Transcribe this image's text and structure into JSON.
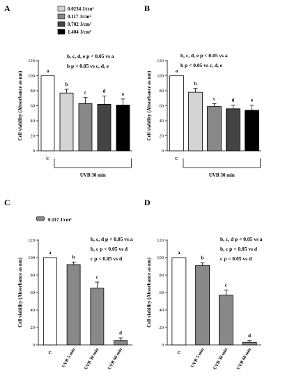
{
  "figure": {
    "legend_top": [
      "0.0234 J/cm²",
      "0.117 J/cm²",
      "0.702 J/cm²",
      "1.404 J/cm²"
    ],
    "legend_top_colors": [
      "#d4d4d4",
      "#888888",
      "#444444",
      "#000000"
    ],
    "legend_bottom": "0.117 J/cm²",
    "legend_bottom_color": "#888888"
  },
  "chart_data": [
    {
      "panel": "A",
      "type": "bar",
      "categories": [
        "C",
        "",
        "",
        "",
        ""
      ],
      "values": [
        100,
        77,
        63,
        62,
        61
      ],
      "errors": [
        0,
        5,
        8,
        11,
        8
      ],
      "colors": [
        "#ffffff",
        "#d4d4d4",
        "#888888",
        "#444444",
        "#000000"
      ],
      "bar_labels": [
        "a",
        "b",
        "c",
        "d",
        "e"
      ],
      "ylabel": "Cell viability (Absorbance as nm)",
      "ylim": [
        0,
        120
      ],
      "yticks": [
        0,
        20,
        40,
        60,
        80,
        100,
        120
      ],
      "group_label": "UVB 30 min",
      "annotations": [
        "b, c, d, e p < 0.05 vs a",
        "b p < 0.05 vs c, d, e"
      ]
    },
    {
      "panel": "B",
      "type": "bar",
      "categories": [
        "C",
        "",
        "",
        "",
        ""
      ],
      "values": [
        100,
        78,
        59,
        56,
        54
      ],
      "errors": [
        0,
        5,
        4,
        5,
        7
      ],
      "colors": [
        "#ffffff",
        "#d4d4d4",
        "#888888",
        "#444444",
        "#000000"
      ],
      "bar_labels": [
        "a",
        "b",
        "c",
        "d",
        "e"
      ],
      "ylabel": "Cell viability (Absorbance as nm)",
      "ylim": [
        0,
        120
      ],
      "yticks": [
        0,
        20,
        40,
        60,
        80,
        100,
        120
      ],
      "group_label": "UVB 30 min",
      "annotations": [
        "b, c, d, e p < 0.05 vs a",
        "b p < 0.05 vs c, d, e"
      ]
    },
    {
      "panel": "C",
      "type": "bar",
      "categories": [
        "C",
        "UVB 5 min",
        "UVB 30 min",
        "UVB 60 min"
      ],
      "values": [
        100,
        92,
        65,
        5
      ],
      "errors": [
        0,
        3,
        7,
        3
      ],
      "colors": [
        "#ffffff",
        "#888888",
        "#888888",
        "#888888"
      ],
      "bar_labels": [
        "a",
        "b",
        "c",
        "d"
      ],
      "ylabel": "Cell viability (Absorbance as nm)",
      "ylim": [
        0,
        120
      ],
      "yticks": [
        0,
        20,
        40,
        60,
        80,
        100,
        120
      ],
      "annotations": [
        "b, c, d p < 0.05 vs a",
        "b, c  p < 0.05 vs d",
        "c p < 0.05 vs d"
      ]
    },
    {
      "panel": "D",
      "type": "bar",
      "categories": [
        "C",
        "UVB 5 min",
        "UVB 30 min",
        "UVB 60 min"
      ],
      "values": [
        100,
        91,
        57,
        3
      ],
      "errors": [
        0,
        3,
        6,
        2
      ],
      "colors": [
        "#ffffff",
        "#888888",
        "#888888",
        "#888888"
      ],
      "bar_labels": [
        "a",
        "b",
        "c",
        "d"
      ],
      "ylabel": "Cell viability (Absorbance as nm)",
      "ylim": [
        0,
        120
      ],
      "yticks": [
        0,
        20,
        40,
        60,
        80,
        100,
        120
      ],
      "annotations": [
        "b, c, d p < 0.05 vs a",
        "b, c  p < 0.05 vs d",
        "c p < 0.05 vs d"
      ]
    }
  ]
}
